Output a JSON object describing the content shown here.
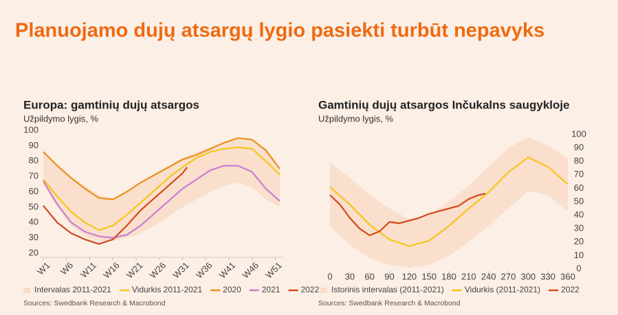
{
  "title": "Planuojamo dujų atsargų lygio pasiekti turbūt nepavyks",
  "chart_data": [
    {
      "type": "line",
      "title": "Europa: gamtinių dujų atsargos",
      "subtitle": "Užpildymo lygis, %",
      "source": "Sources: Swedbank Research & Macrobond",
      "xlim": [
        1,
        52
      ],
      "ylim": [
        20,
        100
      ],
      "yticks": [
        20,
        30,
        40,
        50,
        60,
        70,
        80,
        90,
        100
      ],
      "xticks": [
        {
          "value": 1,
          "label": "W1"
        },
        {
          "value": 6,
          "label": "W6"
        },
        {
          "value": 11,
          "label": "W11"
        },
        {
          "value": 16,
          "label": "W16"
        },
        {
          "value": 21,
          "label": "W21"
        },
        {
          "value": 26,
          "label": "W26"
        },
        {
          "value": 31,
          "label": "W31"
        },
        {
          "value": 36,
          "label": "W36"
        },
        {
          "value": 41,
          "label": "W41"
        },
        {
          "value": 46,
          "label": "W46"
        },
        {
          "value": 51,
          "label": "W51"
        }
      ],
      "grid": false,
      "series": [
        {
          "name": "Intervalas 2011-2021",
          "color": "#f9dcc8",
          "x": [
            1,
            4,
            7,
            10,
            13,
            16,
            19,
            22,
            25,
            28,
            31,
            34,
            37,
            40,
            43,
            46,
            49,
            52
          ],
          "upper": [
            86,
            78,
            70,
            64,
            58,
            56,
            60,
            66,
            72,
            77,
            82,
            86,
            89,
            92,
            94,
            94,
            88,
            76
          ],
          "lower": [
            64,
            50,
            38,
            31,
            28,
            28,
            30,
            33,
            38,
            44,
            50,
            55,
            60,
            64,
            66,
            63,
            55,
            50
          ]
        },
        {
          "name": "Vidurkis 2011-2021",
          "color": "#f5c518",
          "x": [
            1,
            4,
            7,
            10,
            13,
            16,
            19,
            22,
            25,
            28,
            31,
            34,
            37,
            40,
            43,
            46,
            49,
            52
          ],
          "values": [
            68,
            57,
            47,
            40,
            35,
            38,
            45,
            53,
            61,
            69,
            76,
            82,
            86,
            88,
            89,
            88,
            80,
            71
          ]
        },
        {
          "name": "2020",
          "color": "#e8901a",
          "x": [
            1,
            4,
            7,
            10,
            13,
            16,
            19,
            22,
            25,
            28,
            31,
            34,
            37,
            40,
            43,
            46,
            49,
            52
          ],
          "values": [
            86,
            77,
            69,
            62,
            56,
            55,
            60,
            66,
            71,
            76,
            81,
            84,
            88,
            92,
            95,
            94,
            87,
            75
          ]
        },
        {
          "name": "2021",
          "color": "#c77dd0",
          "x": [
            1,
            4,
            7,
            10,
            13,
            16,
            19,
            22,
            25,
            28,
            31,
            34,
            37,
            40,
            43,
            46,
            49,
            52
          ],
          "values": [
            67,
            52,
            40,
            34,
            31,
            30,
            32,
            38,
            46,
            54,
            62,
            68,
            74,
            77,
            77,
            73,
            62,
            54
          ]
        },
        {
          "name": "2022",
          "color": "#d4481a",
          "x": [
            1,
            4,
            7,
            10,
            13,
            16,
            19,
            22,
            25,
            28,
            31,
            32
          ],
          "values": [
            51,
            40,
            33,
            29,
            26,
            29,
            38,
            48,
            56,
            64,
            72,
            76
          ]
        }
      ]
    },
    {
      "type": "line",
      "title": "Gamtinių dujų atsargos Inčukalns saugykloje",
      "subtitle": "Užpildymo lygis, %",
      "source": "Sources: Swedbank Research & Macrobond",
      "xlim": [
        0,
        360
      ],
      "ylim": [
        0,
        100
      ],
      "yticks": [
        0,
        10,
        20,
        30,
        40,
        50,
        60,
        70,
        80,
        90,
        100
      ],
      "xticks": [
        0,
        30,
        60,
        90,
        120,
        150,
        180,
        210,
        240,
        270,
        300,
        330,
        360
      ],
      "grid": false,
      "series": [
        {
          "name": "Istorinis intervalas (2011-2021)",
          "color": "#f9dcc8",
          "x": [
            0,
            30,
            60,
            90,
            120,
            150,
            180,
            210,
            240,
            270,
            300,
            330,
            360
          ],
          "upper": [
            79,
            68,
            55,
            45,
            37,
            40,
            50,
            62,
            76,
            90,
            98,
            92,
            82
          ],
          "lower": [
            32,
            18,
            8,
            3,
            1,
            3,
            10,
            20,
            32,
            45,
            58,
            55,
            43
          ]
        },
        {
          "name": "Vidurkis (2011-2021)",
          "color": "#f5c518",
          "x": [
            0,
            30,
            60,
            90,
            120,
            150,
            180,
            210,
            240,
            270,
            300,
            330,
            360
          ],
          "values": [
            61,
            48,
            33,
            22,
            17,
            21,
            32,
            45,
            57,
            72,
            83,
            76,
            63
          ]
        },
        {
          "name": "2022",
          "color": "#d4481a",
          "x": [
            0,
            15,
            30,
            45,
            60,
            75,
            90,
            105,
            120,
            135,
            150,
            165,
            180,
            195,
            210,
            225,
            235
          ],
          "values": [
            55,
            48,
            38,
            30,
            25,
            28,
            35,
            34,
            36,
            38,
            41,
            43,
            45,
            47,
            52,
            55,
            56
          ]
        }
      ]
    }
  ]
}
